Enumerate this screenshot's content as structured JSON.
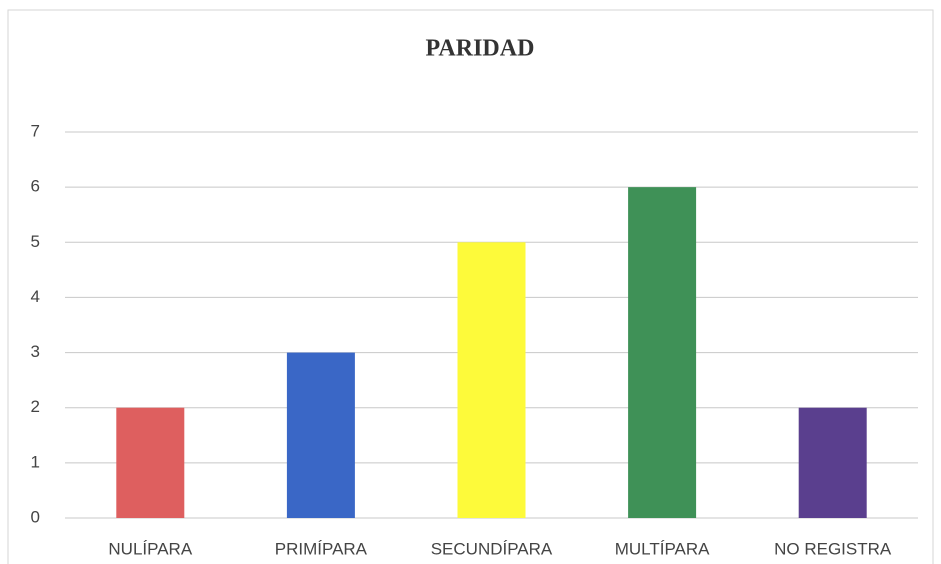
{
  "chart_data": {
    "type": "bar",
    "title": "PARIDAD",
    "categories": [
      "NULÍPARA",
      "PRIMÍPARA",
      "SECUNDÍPARA",
      "MULTÍPARA",
      "NO REGISTRA"
    ],
    "values": [
      2,
      3,
      5,
      6,
      2
    ],
    "colors": [
      "#de5f5f",
      "#3a67c6",
      "#fdfa3a",
      "#3f9157",
      "#5a3f8e"
    ],
    "ylim": [
      0,
      7
    ],
    "yticks": [
      0,
      1,
      2,
      3,
      4,
      5,
      6,
      7
    ],
    "grid": true
  }
}
